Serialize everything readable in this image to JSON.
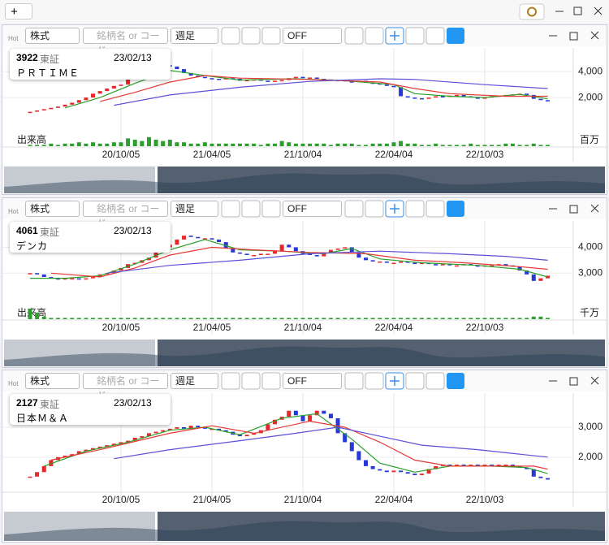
{
  "app": {
    "add_button": "+"
  },
  "panels": [
    {
      "toolbar": {
        "hot": "Hot",
        "market": "株式",
        "search_placeholder": "銘柄名 or コード",
        "period": "週足",
        "indicator": "OFF"
      },
      "info": {
        "code": "3922",
        "exchange": "東証",
        "date": "23/02/13",
        "name": "ＰＲＴＩＭＥ"
      },
      "chart_data": {
        "type": "candlestick",
        "up_color": "#e8262b",
        "down_color": "#2638d6",
        "categories": [
          null,
          null,
          null,
          null,
          null,
          null,
          null,
          null,
          null,
          null,
          null,
          null,
          null,
          "20/10/05",
          null,
          null,
          null,
          null,
          null,
          null,
          null,
          null,
          null,
          null,
          null,
          null,
          "21/04/05",
          null,
          null,
          null,
          null,
          null,
          null,
          null,
          null,
          null,
          null,
          null,
          null,
          "21/10/04",
          null,
          null,
          null,
          null,
          null,
          null,
          null,
          null,
          null,
          null,
          null,
          null,
          "22/04/04",
          null,
          null,
          null,
          null,
          null,
          null,
          null,
          null,
          null,
          null,
          null,
          null,
          "22/10/03",
          null,
          null,
          null,
          null,
          null,
          null,
          null,
          null,
          null
        ],
        "values": [
          900,
          1000,
          1100,
          1200,
          1300,
          1450,
          1600,
          1800,
          2000,
          2300,
          2500,
          2700,
          2900,
          3000,
          3400,
          3700,
          3800,
          4000,
          4300,
          4500,
          4400,
          4200,
          3900,
          3700,
          3600,
          3500,
          3450,
          3400,
          3500,
          3450,
          3300,
          3350,
          3400,
          3300,
          3250,
          3300,
          3350,
          3500,
          3600,
          3500,
          3550,
          3450,
          3400,
          3300,
          3350,
          3250,
          3200,
          3300,
          3150,
          3100,
          3000,
          2900,
          2800,
          2100,
          2000,
          1950,
          1900,
          2000,
          2100,
          2050,
          2150,
          2200,
          2100,
          2000,
          1950,
          2000,
          2100,
          2150,
          2200,
          2250,
          2300,
          2200,
          1900,
          1800,
          1750
        ],
        "ylim": [
          -1200,
          5400
        ],
        "yticks": [
          {
            "value": 2000,
            "label": "2,000"
          },
          {
            "value": 4000,
            "label": "4,000"
          }
        ],
        "grid": true,
        "moving_averages": [
          {
            "color": "#2aa02a",
            "x": [
              5,
              10,
              15,
              20,
              25,
              30,
              38,
              45,
              52,
              55,
              60,
              65,
              70,
              74
            ],
            "values": [
              1200,
              2000,
              3100,
              4100,
              3700,
              3350,
              3450,
              3300,
              3000,
              2300,
              2100,
              2000,
              2250,
              1900
            ]
          },
          {
            "color": "#e53935",
            "x": [
              10,
              15,
              20,
              25,
              30,
              40,
              50,
              55,
              60,
              68,
              74
            ],
            "values": [
              1700,
              2400,
              3200,
              3700,
              3500,
              3400,
              3200,
              2700,
              2300,
              2100,
              2100
            ]
          },
          {
            "color": "#5b4fd6",
            "x": [
              12,
              20,
              30,
              40,
              50,
              55,
              65,
              74
            ],
            "values": [
              1400,
              2200,
              2800,
              3250,
              3450,
              3400,
              3000,
              2700
            ]
          }
        ],
        "volume": {
          "label": "出来高",
          "unit": "百万",
          "color": "#2e9e2e",
          "ylim": [
            0,
            10
          ],
          "values": [
            1,
            1,
            1,
            2,
            1,
            2,
            2,
            3,
            2,
            3,
            2,
            2,
            3,
            3,
            6,
            5,
            4,
            7,
            5,
            4,
            5,
            3,
            3,
            2,
            2,
            3,
            2,
            2,
            2,
            2,
            2,
            2,
            2,
            1,
            2,
            2,
            4,
            3,
            2,
            2,
            2,
            2,
            2,
            1,
            2,
            2,
            2,
            1,
            1,
            2,
            2,
            2,
            3,
            4,
            2,
            2,
            1,
            1,
            2,
            1,
            1,
            1,
            1,
            2,
            1,
            1,
            1,
            1,
            2,
            2,
            1,
            1,
            2,
            1,
            1
          ]
        }
      }
    },
    {
      "toolbar": {
        "hot": "Hot",
        "market": "株式",
        "search_placeholder": "銘柄名 or コード",
        "period": "週足",
        "indicator": "OFF"
      },
      "info": {
        "code": "4061",
        "exchange": "東証",
        "date": "23/02/13",
        "name": "デンカ"
      },
      "chart_data": {
        "type": "candlestick",
        "up_color": "#e8262b",
        "down_color": "#2638d6",
        "categories": [
          null,
          null,
          null,
          null,
          null,
          null,
          null,
          null,
          null,
          null,
          null,
          null,
          null,
          "20/10/05",
          null,
          null,
          null,
          null,
          null,
          null,
          null,
          null,
          null,
          null,
          null,
          null,
          "21/04/05",
          null,
          null,
          null,
          null,
          null,
          null,
          null,
          null,
          null,
          null,
          null,
          null,
          "21/10/04",
          null,
          null,
          null,
          null,
          null,
          null,
          null,
          null,
          null,
          null,
          null,
          null,
          "22/04/04",
          null,
          null,
          null,
          null,
          null,
          null,
          null,
          null,
          null,
          null,
          null,
          null,
          "22/10/03",
          null,
          null,
          null,
          null,
          null,
          null,
          null,
          null,
          null
        ],
        "values": [
          3000,
          2950,
          2850,
          2800,
          2750,
          2800,
          2800,
          2750,
          2800,
          2850,
          2950,
          3000,
          3100,
          3200,
          3350,
          3400,
          3500,
          3600,
          3800,
          4000,
          4100,
          4300,
          4450,
          4400,
          4350,
          4350,
          4300,
          4200,
          3950,
          3800,
          3750,
          3700,
          3700,
          3750,
          3750,
          3850,
          4100,
          4000,
          3850,
          3750,
          3700,
          3650,
          3800,
          3900,
          3950,
          4000,
          3800,
          3600,
          3500,
          3450,
          3450,
          3400,
          3400,
          3450,
          3400,
          3350,
          3400,
          3350,
          3300,
          3350,
          3300,
          3300,
          3350,
          3300,
          3250,
          3300,
          3300,
          3350,
          3300,
          3250,
          3100,
          2950,
          2700,
          2800,
          2900
        ],
        "ylim": [
          1500,
          4800
        ],
        "yticks": [
          {
            "value": 3000,
            "label": "3,000"
          },
          {
            "value": 4000,
            "label": "4,000"
          }
        ],
        "grid": true,
        "moving_averages": [
          {
            "color": "#2aa02a",
            "x": [
              0,
              5,
              10,
              15,
              20,
              25,
              30,
              36,
              42,
              46,
              50,
              56,
              64,
              70,
              74
            ],
            "values": [
              2800,
              2800,
              2900,
              3350,
              3900,
              4300,
              3900,
              3850,
              3750,
              3950,
              3550,
              3400,
              3300,
              3150,
              2850
            ]
          },
          {
            "color": "#e53935",
            "x": [
              3,
              10,
              15,
              20,
              26,
              32,
              40,
              48,
              55,
              62,
              70,
              74
            ],
            "values": [
              3000,
              2850,
              3200,
              3700,
              4000,
              3900,
              3800,
              3750,
              3500,
              3400,
              3250,
              3150
            ]
          },
          {
            "color": "#5b4fd6",
            "x": [
              11,
              20,
              30,
              40,
              50,
              60,
              68,
              74
            ],
            "values": [
              3000,
              3300,
              3500,
              3750,
              3850,
              3750,
              3650,
              3500
            ]
          }
        ],
        "volume": {
          "label": "出来高",
          "unit": "千万",
          "color": "#2e9e2e",
          "ylim": [
            0,
            10
          ],
          "values": [
            8,
            5,
            2,
            1,
            1,
            1,
            1,
            1,
            1,
            1,
            1,
            1,
            1,
            1,
            1,
            1,
            1,
            1,
            1,
            1,
            1,
            1,
            1,
            1,
            1,
            1,
            1,
            1,
            1,
            1,
            1,
            1,
            1,
            1,
            1,
            1,
            1,
            1,
            1,
            1,
            1,
            1,
            1,
            1,
            1,
            1,
            1,
            1,
            1,
            1,
            1,
            1,
            1,
            1,
            1,
            1,
            1,
            1,
            1,
            1,
            1,
            1,
            1,
            1,
            1,
            1,
            1,
            1,
            1,
            1,
            1,
            1,
            2,
            2,
            1
          ]
        }
      }
    },
    {
      "toolbar": {
        "hot": "Hot",
        "market": "株式",
        "search_placeholder": "銘柄名 or コード",
        "period": "週足",
        "indicator": "OFF"
      },
      "info": {
        "code": "2127",
        "exchange": "東証",
        "date": "23/02/13",
        "name": "日本Ｍ＆Ａ"
      },
      "chart_data": {
        "type": "candlestick",
        "up_color": "#e8262b",
        "down_color": "#2638d6",
        "categories": [
          null,
          null,
          null,
          null,
          null,
          null,
          null,
          null,
          null,
          null,
          null,
          null,
          null,
          "20/10/05",
          null,
          null,
          null,
          null,
          null,
          null,
          null,
          null,
          null,
          null,
          null,
          null,
          "21/04/05",
          null,
          null,
          null,
          null,
          null,
          null,
          null,
          null,
          null,
          null,
          null,
          null,
          "21/10/04",
          null,
          null,
          null,
          null,
          null,
          null,
          null,
          null,
          null,
          null,
          null,
          null,
          "22/04/04",
          null,
          null,
          null,
          null,
          null,
          null,
          null,
          null,
          null,
          null,
          null,
          null,
          "22/10/03",
          null,
          null,
          null,
          null,
          null,
          null,
          null,
          null,
          null
        ],
        "values": [
          1350,
          1500,
          1700,
          1900,
          2000,
          2050,
          2100,
          2200,
          2250,
          2300,
          2350,
          2400,
          2450,
          2500,
          2550,
          2650,
          2700,
          2800,
          2850,
          2900,
          2950,
          3000,
          2950,
          3050,
          3000,
          2950,
          2950,
          2900,
          2850,
          2750,
          2700,
          2750,
          2800,
          2900,
          3100,
          3250,
          3350,
          3550,
          3400,
          3200,
          3400,
          3550,
          3450,
          3300,
          2800,
          2500,
          2200,
          1900,
          1700,
          1600,
          1550,
          1500,
          1550,
          1500,
          1450,
          1400,
          1450,
          1600,
          1700,
          1750,
          1700,
          1750,
          1700,
          1750,
          1700,
          1750,
          1700,
          1750,
          1750,
          1700,
          1650,
          1600,
          1350,
          1300,
          1250
        ],
        "ylim": [
          1100,
          3950
        ],
        "yticks": [
          {
            "value": 2000,
            "label": "2,000"
          },
          {
            "value": 3000,
            "label": "3,000"
          }
        ],
        "grid": true,
        "moving_averages": [
          {
            "color": "#2aa02a",
            "x": [
              2,
              8,
              14,
              20,
              25,
              30,
              36,
              41,
              46,
              50,
              55,
              60,
              66,
              71,
              74
            ],
            "values": [
              1700,
              2200,
              2500,
              2900,
              3000,
              2750,
              3300,
              3450,
              2600,
              1800,
              1500,
              1700,
              1700,
              1650,
              1450
            ]
          },
          {
            "color": "#e53935",
            "x": [
              3,
              10,
              20,
              26,
              32,
              40,
              45,
              50,
              55,
              60,
              66,
              72,
              74
            ],
            "values": [
              1900,
              2250,
              2800,
              3050,
              2800,
              3200,
              3000,
              2500,
              1900,
              1700,
              1700,
              1700,
              1600
            ]
          },
          {
            "color": "#5b4fd6",
            "x": [
              12,
              20,
              30,
              38,
              44,
              50,
              56,
              64,
              70,
              74
            ],
            "values": [
              1950,
              2250,
              2550,
              2800,
              3000,
              2700,
              2400,
              2250,
              2100,
              2000
            ]
          }
        ]
      }
    }
  ]
}
